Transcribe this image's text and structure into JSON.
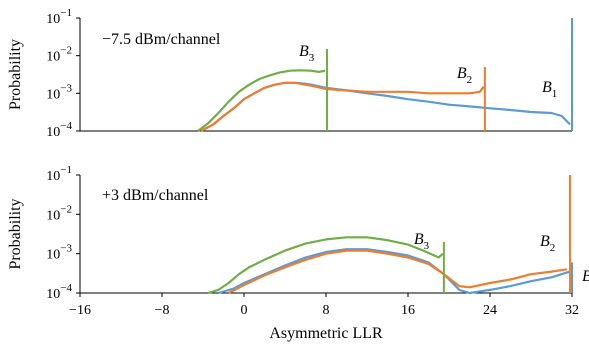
{
  "chart_data": [
    {
      "type": "line",
      "annotation": "−7.5 dBm/channel",
      "xlabel": "",
      "ylabel": "Probability",
      "xlim": [
        -16,
        32
      ],
      "ylim": [
        0.0001,
        0.1
      ],
      "yscale": "log",
      "ytick_labels": [
        {
          "base": "10",
          "exp": "−1",
          "value": 0.1
        },
        {
          "base": "10",
          "exp": "−2",
          "value": 0.01
        },
        {
          "base": "10",
          "exp": "−3",
          "value": 0.001
        },
        {
          "base": "10",
          "exp": "−4",
          "value": 0.0001
        }
      ],
      "series": [
        {
          "color": "#5B9BD5",
          "spike_label": {
            "letter": "B",
            "sub": "1"
          },
          "spike_x": 32,
          "spike_y": 0.1,
          "x": [
            -4.2,
            -3,
            -2,
            -1,
            0,
            1,
            2,
            3,
            4,
            5,
            6,
            7,
            8,
            10,
            12,
            14,
            16,
            18,
            20,
            22,
            24,
            26,
            28,
            30,
            31,
            31.8
          ],
          "y": [
            0.0001,
            0.00015,
            0.00025,
            0.0004,
            0.0007,
            0.001,
            0.0014,
            0.0017,
            0.0019,
            0.0019,
            0.0018,
            0.0016,
            0.0014,
            0.0012,
            0.001,
            0.00085,
            0.0007,
            0.0006,
            0.0005,
            0.00045,
            0.0004,
            0.00036,
            0.00032,
            0.0003,
            0.00025,
            0.00015
          ]
        },
        {
          "color": "#ED7D31",
          "spike_label": {
            "letter": "B",
            "sub": "2"
          },
          "spike_x": 23.5,
          "spike_y": 0.005,
          "x": [
            -4.2,
            -3,
            -2,
            -1,
            0,
            1,
            2,
            3,
            4,
            5,
            6,
            7,
            8,
            10,
            12,
            14,
            16,
            18,
            20,
            21,
            22,
            23,
            23.4
          ],
          "y": [
            0.0001,
            0.00015,
            0.00025,
            0.0004,
            0.0007,
            0.001,
            0.0014,
            0.0017,
            0.0019,
            0.0019,
            0.0017,
            0.0015,
            0.0013,
            0.0012,
            0.0011,
            0.0011,
            0.0011,
            0.001,
            0.001,
            0.001,
            0.001,
            0.0011,
            0.0015
          ]
        },
        {
          "color": "#70AD47",
          "spike_label": {
            "letter": "B",
            "sub": "3"
          },
          "spike_x": 8.1,
          "spike_y": 0.015,
          "x": [
            -4.5,
            -3.5,
            -2.5,
            -1.5,
            -0.5,
            0.5,
            1.5,
            2.5,
            3.5,
            4.5,
            5.5,
            6.5,
            7.3,
            7.9
          ],
          "y": [
            0.0001,
            0.00016,
            0.0003,
            0.0006,
            0.0011,
            0.0017,
            0.0024,
            0.003,
            0.0036,
            0.004,
            0.0041,
            0.004,
            0.0037,
            0.004
          ]
        }
      ]
    },
    {
      "type": "line",
      "annotation": "+3 dBm/channel",
      "xlabel": "Asymmetric LLR",
      "ylabel": "Probability",
      "xlim": [
        -16,
        32
      ],
      "ylim": [
        0.0001,
        0.1
      ],
      "yscale": "log",
      "xticks": [
        -16,
        -8,
        0,
        8,
        16,
        24,
        32
      ],
      "xtick_labels": [
        "−16",
        "−8",
        "0",
        "8",
        "16",
        "24",
        "32"
      ],
      "ytick_labels": [
        {
          "base": "10",
          "exp": "−1",
          "value": 0.1
        },
        {
          "base": "10",
          "exp": "−2",
          "value": 0.01
        },
        {
          "base": "10",
          "exp": "−3",
          "value": 0.001
        },
        {
          "base": "10",
          "exp": "−4",
          "value": 0.0001
        }
      ],
      "series": [
        {
          "color": "#5B9BD5",
          "spike_label": {
            "letter": "B",
            "sub": ""
          },
          "spike_x": 32,
          "spike_y": 0.0006,
          "x": [
            -2.5,
            -1,
            0,
            2,
            4,
            6,
            8,
            10,
            12,
            14,
            16,
            18,
            19.5,
            21,
            22,
            24,
            26,
            28,
            30,
            31.8
          ],
          "y": [
            0.0001,
            0.00013,
            0.00018,
            0.0003,
            0.0005,
            0.0008,
            0.0011,
            0.0013,
            0.0013,
            0.0011,
            0.0009,
            0.0006,
            0.0003,
            0.00012,
            0.0001,
            0.00012,
            0.00015,
            0.0002,
            0.00025,
            0.00035
          ]
        },
        {
          "color": "#ED7D31",
          "spike_label": {
            "letter": "B",
            "sub": "2"
          },
          "spike_x": 31.8,
          "spike_y": 0.1,
          "x": [
            -1.5,
            0,
            2,
            4,
            6,
            8,
            10,
            12,
            14,
            16,
            18,
            19.5,
            21,
            22,
            24,
            26,
            28,
            30,
            31.5
          ],
          "y": [
            0.0001,
            0.00016,
            0.00028,
            0.00045,
            0.0007,
            0.001,
            0.0012,
            0.0012,
            0.001,
            0.0008,
            0.00055,
            0.0003,
            0.00015,
            0.00014,
            0.00018,
            0.00022,
            0.0003,
            0.00035,
            0.0004
          ]
        },
        {
          "color": "#70AD47",
          "spike_label": {
            "letter": "B",
            "sub": "3"
          },
          "spike_x": 19.5,
          "spike_y": 0.002,
          "x": [
            -3.5,
            -2.5,
            -1.5,
            -0.5,
            0.5,
            2,
            4,
            6,
            8,
            10,
            12,
            14,
            16,
            17.5,
            19,
            19.4
          ],
          "y": [
            0.0001,
            0.00012,
            0.00018,
            0.0003,
            0.00045,
            0.0007,
            0.0012,
            0.0018,
            0.0023,
            0.0026,
            0.0026,
            0.0022,
            0.0017,
            0.0012,
            0.0008,
            0.001
          ]
        }
      ]
    }
  ]
}
